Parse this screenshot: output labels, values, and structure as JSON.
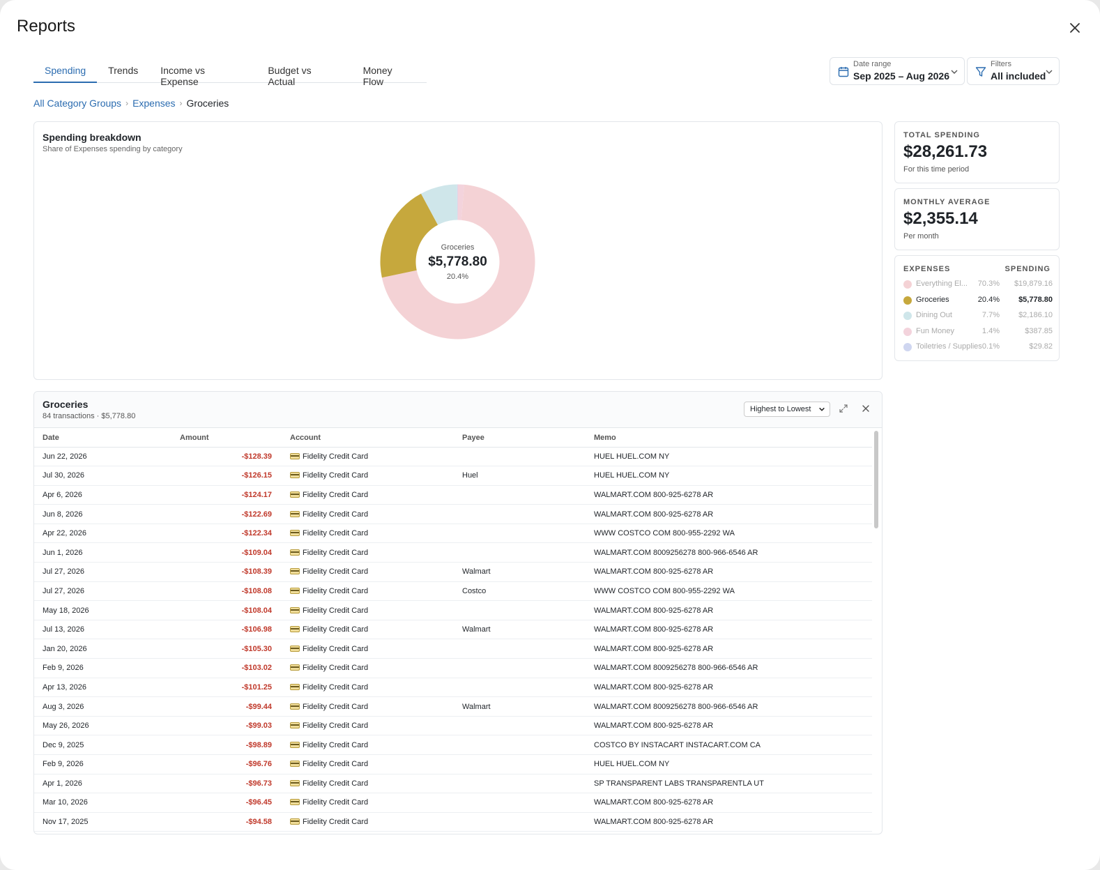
{
  "window": {
    "title": "Reports"
  },
  "tabs": [
    {
      "label": "Spending",
      "active": true
    },
    {
      "label": "Trends",
      "active": false
    },
    {
      "label": "Income vs Expense",
      "active": false
    },
    {
      "label": "Budget vs Actual",
      "active": false
    },
    {
      "label": "Money Flow",
      "active": false
    }
  ],
  "date_range": {
    "label": "Date range",
    "value": "Sep 2025 – Aug 2026"
  },
  "filters": {
    "label": "Filters",
    "value": "All included"
  },
  "breadcrumb": {
    "items": [
      "All Category Groups",
      "Expenses"
    ],
    "current": "Groceries"
  },
  "breakdown": {
    "title": "Spending breakdown",
    "subtitle": "Share of Expenses spending by category",
    "center_name": "Groceries",
    "center_value": "$5,778.80",
    "center_pct": "20.4%"
  },
  "chart_data": {
    "type": "pie",
    "categories": [
      "Everything El...",
      "Groceries",
      "Dining Out",
      "Fun Money",
      "Toiletries / Supplies"
    ],
    "values": [
      19879.16,
      5778.8,
      2186.1,
      387.85,
      29.82
    ],
    "percentages": [
      70.3,
      20.4,
      7.7,
      1.4,
      0.1
    ],
    "colors": [
      "#f4d2d5",
      "#c6a83d",
      "#cfe6ea",
      "#f3d3dc",
      "#cfd6f0"
    ],
    "highlighted": "Groceries"
  },
  "stats": {
    "total": {
      "label": "TOTAL SPENDING",
      "value": "$28,261.73",
      "sub": "For this time period"
    },
    "average": {
      "label": "MONTHLY AVERAGE",
      "value": "$2,355.14",
      "sub": "Per month"
    }
  },
  "legend": {
    "col1": "EXPENSES",
    "col2": "SPENDING",
    "items": [
      {
        "name": "Everything El...",
        "pct": "70.3%",
        "amount": "$19,879.16",
        "color": "#f4d2d5",
        "active": false
      },
      {
        "name": "Groceries",
        "pct": "20.4%",
        "amount": "$5,778.80",
        "color": "#c6a83d",
        "active": true
      },
      {
        "name": "Dining Out",
        "pct": "7.7%",
        "amount": "$2,186.10",
        "color": "#cfe6ea",
        "active": false
      },
      {
        "name": "Fun Money",
        "pct": "1.4%",
        "amount": "$387.85",
        "color": "#f3d3dc",
        "active": false
      },
      {
        "name": "Toiletries / Supplies",
        "pct": "0.1%",
        "amount": "$29.82",
        "color": "#cfd6f0",
        "active": false
      }
    ]
  },
  "transactions": {
    "title": "Groceries",
    "subtitle": "84 transactions · $5,778.80",
    "sort_label": "Highest to Lowest",
    "columns": [
      "Date",
      "Amount",
      "Account",
      "Payee",
      "Memo"
    ],
    "rows": [
      {
        "date": "Jun 22, 2026",
        "amount": "-$128.39",
        "account": "Fidelity Credit Card",
        "payee": "",
        "memo": "HUEL HUEL.COM NY"
      },
      {
        "date": "Jul 30, 2026",
        "amount": "-$126.15",
        "account": "Fidelity Credit Card",
        "payee": "Huel",
        "memo": "HUEL HUEL.COM NY"
      },
      {
        "date": "Apr 6, 2026",
        "amount": "-$124.17",
        "account": "Fidelity Credit Card",
        "payee": "",
        "memo": "WALMART.COM 800-925-6278 AR"
      },
      {
        "date": "Jun 8, 2026",
        "amount": "-$122.69",
        "account": "Fidelity Credit Card",
        "payee": "",
        "memo": "WALMART.COM 800-925-6278 AR"
      },
      {
        "date": "Apr 22, 2026",
        "amount": "-$122.34",
        "account": "Fidelity Credit Card",
        "payee": "",
        "memo": "WWW COSTCO COM 800-955-2292 WA"
      },
      {
        "date": "Jun 1, 2026",
        "amount": "-$109.04",
        "account": "Fidelity Credit Card",
        "payee": "",
        "memo": "WALMART.COM 8009256278 800-966-6546 AR"
      },
      {
        "date": "Jul 27, 2026",
        "amount": "-$108.39",
        "account": "Fidelity Credit Card",
        "payee": "Walmart",
        "memo": "WALMART.COM 800-925-6278 AR"
      },
      {
        "date": "Jul 27, 2026",
        "amount": "-$108.08",
        "account": "Fidelity Credit Card",
        "payee": "Costco",
        "memo": "WWW COSTCO COM 800-955-2292 WA"
      },
      {
        "date": "May 18, 2026",
        "amount": "-$108.04",
        "account": "Fidelity Credit Card",
        "payee": "",
        "memo": "WALMART.COM 800-925-6278 AR"
      },
      {
        "date": "Jul 13, 2026",
        "amount": "-$106.98",
        "account": "Fidelity Credit Card",
        "payee": "Walmart",
        "memo": "WALMART.COM 800-925-6278 AR"
      },
      {
        "date": "Jan 20, 2026",
        "amount": "-$105.30",
        "account": "Fidelity Credit Card",
        "payee": "",
        "memo": "WALMART.COM 800-925-6278 AR"
      },
      {
        "date": "Feb 9, 2026",
        "amount": "-$103.02",
        "account": "Fidelity Credit Card",
        "payee": "",
        "memo": "WALMART.COM 8009256278 800-966-6546 AR"
      },
      {
        "date": "Apr 13, 2026",
        "amount": "-$101.25",
        "account": "Fidelity Credit Card",
        "payee": "",
        "memo": "WALMART.COM 800-925-6278 AR"
      },
      {
        "date": "Aug 3, 2026",
        "amount": "-$99.44",
        "account": "Fidelity Credit Card",
        "payee": "Walmart",
        "memo": "WALMART.COM 8009256278 800-966-6546 AR"
      },
      {
        "date": "May 26, 2026",
        "amount": "-$99.03",
        "account": "Fidelity Credit Card",
        "payee": "",
        "memo": "WALMART.COM 800-925-6278 AR"
      },
      {
        "date": "Dec 9, 2025",
        "amount": "-$98.89",
        "account": "Fidelity Credit Card",
        "payee": "",
        "memo": "COSTCO BY INSTACART INSTACART.COM CA"
      },
      {
        "date": "Feb 9, 2026",
        "amount": "-$96.76",
        "account": "Fidelity Credit Card",
        "payee": "",
        "memo": "HUEL HUEL.COM NY"
      },
      {
        "date": "Apr 1, 2026",
        "amount": "-$96.73",
        "account": "Fidelity Credit Card",
        "payee": "",
        "memo": "SP TRANSPARENT LABS TRANSPARENTLA UT"
      },
      {
        "date": "Mar 10, 2026",
        "amount": "-$96.45",
        "account": "Fidelity Credit Card",
        "payee": "",
        "memo": "WALMART.COM 800-925-6278 AR"
      },
      {
        "date": "Nov 17, 2025",
        "amount": "-$94.58",
        "account": "Fidelity Credit Card",
        "payee": "",
        "memo": "WALMART.COM 800-925-6278 AR"
      }
    ]
  }
}
